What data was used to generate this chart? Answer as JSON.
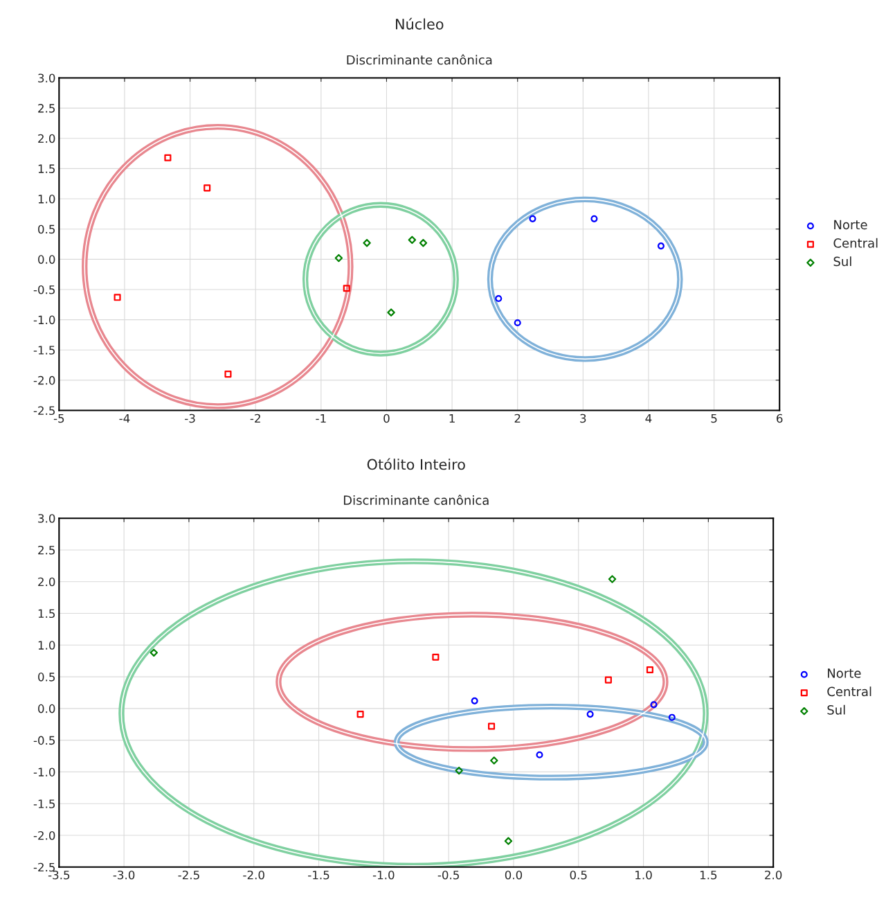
{
  "chart_data": [
    {
      "type": "scatter",
      "title": "Núcleo",
      "subtitle": "Discriminante canônica",
      "grid": true,
      "legend": "right",
      "xlim": [
        -5,
        6
      ],
      "xticks": [
        -5,
        -4,
        -3,
        -2,
        -1,
        0,
        1,
        2,
        3,
        4,
        5,
        6
      ],
      "ylim": [
        -2.5,
        3.0
      ],
      "yticks": [
        {
          "value": -2.5,
          "label": "-2.5"
        },
        {
          "value": -2.0,
          "label": "-2.0"
        },
        {
          "value": -1.5,
          "label": "-1.5"
        },
        {
          "value": -1.0,
          "label": "-1.0"
        },
        {
          "value": -0.5,
          "label": "-0.5"
        },
        {
          "value": 0.0,
          "label": "0.0"
        },
        {
          "value": 0.5,
          "label": "0.5"
        },
        {
          "value": 1.0,
          "label": "1.0"
        },
        {
          "value": 1.5,
          "label": "1.5"
        },
        {
          "value": 2.0,
          "label": "2.0"
        },
        {
          "value": 2.5,
          "label": "2.5"
        },
        {
          "value": 3.0,
          "label": "3.0"
        }
      ],
      "series": [
        {
          "type": "scatter",
          "name": "Norte",
          "color": "#0000ff",
          "marker": "circle",
          "x": [
            2.23,
            3.17,
            4.19,
            1.71,
            2.0
          ],
          "values": [
            0.67,
            0.67,
            0.22,
            -0.65,
            -1.05
          ]
        },
        {
          "type": "scatter",
          "name": "Central",
          "color": "#ff0000",
          "marker": "square",
          "x": [
            -3.34,
            -2.74,
            -4.11,
            -2.42,
            -0.61
          ],
          "values": [
            1.68,
            1.18,
            -0.63,
            -1.9,
            -0.48
          ]
        },
        {
          "type": "scatter",
          "name": "Sul",
          "color": "#008000",
          "marker": "diamond",
          "x": [
            -0.73,
            -0.3,
            0.39,
            0.56,
            0.07
          ],
          "values": [
            0.02,
            0.27,
            0.32,
            0.27,
            -0.88
          ]
        }
      ]
    },
    {
      "type": "scatter",
      "title": "Otólito Inteiro",
      "subtitle": "Discriminante canônica",
      "grid": true,
      "legend": "right",
      "xlim": [
        -3.5,
        2.0
      ],
      "xticks": [
        {
          "value": -3.5,
          "label": "-3.5"
        },
        {
          "value": -3.0,
          "label": "-3.0"
        },
        {
          "value": -2.5,
          "label": "-2.5"
        },
        {
          "value": -2.0,
          "label": "-2.0"
        },
        {
          "value": -1.5,
          "label": "-1.5"
        },
        {
          "value": -1.0,
          "label": "-1.0"
        },
        {
          "value": -0.5,
          "label": "-0.5"
        },
        {
          "value": 0.0,
          "label": "0.0"
        },
        {
          "value": 0.5,
          "label": "0.5"
        },
        {
          "value": 1.0,
          "label": "1.0"
        },
        {
          "value": 1.5,
          "label": "1.5"
        },
        {
          "value": 2.0,
          "label": "2.0"
        }
      ],
      "ylim": [
        -2.5,
        3.0
      ],
      "yticks": [
        {
          "value": -2.5,
          "label": "-2.5"
        },
        {
          "value": -2.0,
          "label": "-2.0"
        },
        {
          "value": -1.5,
          "label": "-1.5"
        },
        {
          "value": -1.0,
          "label": "-1.0"
        },
        {
          "value": -0.5,
          "label": "-0.5"
        },
        {
          "value": 0.0,
          "label": "0.0"
        },
        {
          "value": 0.5,
          "label": "0.5"
        },
        {
          "value": 1.0,
          "label": "1.0"
        },
        {
          "value": 1.5,
          "label": "1.5"
        },
        {
          "value": 2.0,
          "label": "2.0"
        },
        {
          "value": 2.5,
          "label": "2.5"
        },
        {
          "value": 3.0,
          "label": "3.0"
        }
      ],
      "series": [
        {
          "type": "scatter",
          "name": "Norte",
          "color": "#0000ff",
          "marker": "circle",
          "x": [
            -0.3,
            0.59,
            1.08,
            1.22,
            0.2
          ],
          "values": [
            0.12,
            -0.09,
            0.06,
            -0.14,
            -0.73
          ]
        },
        {
          "type": "scatter",
          "name": "Central",
          "color": "#ff0000",
          "marker": "square",
          "x": [
            -0.6,
            0.73,
            1.05,
            -1.18,
            -0.17
          ],
          "values": [
            0.81,
            0.45,
            0.61,
            -0.09,
            -0.28
          ]
        },
        {
          "type": "scatter",
          "name": "Sul",
          "color": "#008000",
          "marker": "diamond",
          "x": [
            -2.77,
            0.76,
            -0.42,
            -0.15,
            -0.04
          ],
          "values": [
            0.88,
            2.04,
            -0.98,
            -0.82,
            -2.09
          ]
        }
      ]
    }
  ]
}
